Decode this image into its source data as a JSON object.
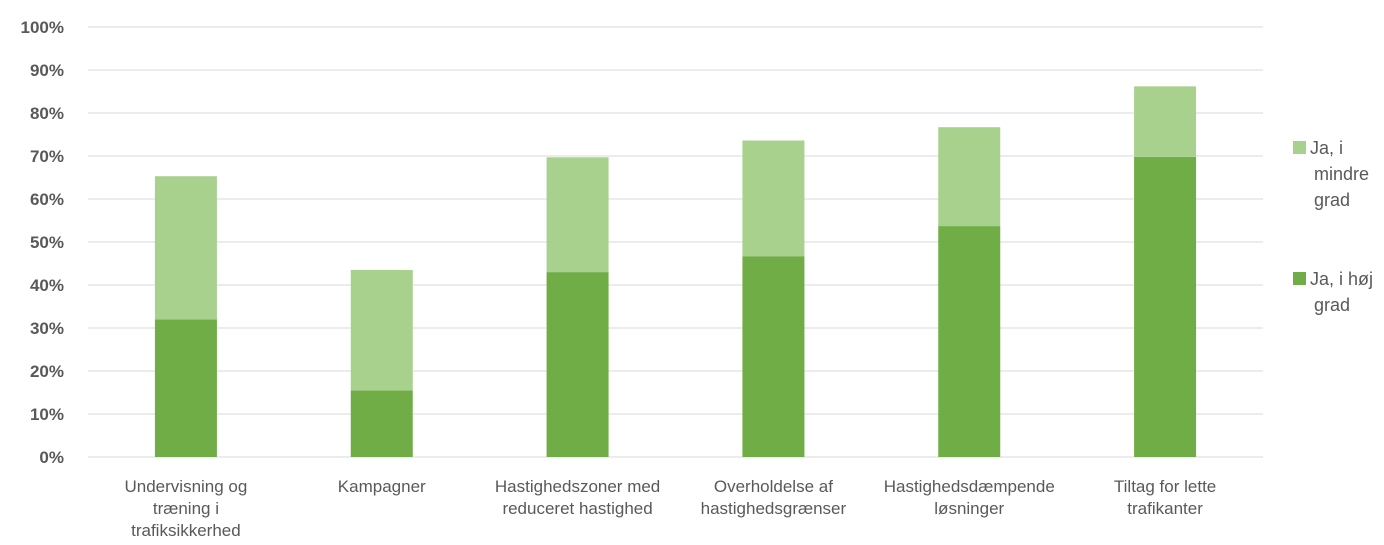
{
  "chart_data": {
    "type": "bar",
    "stacked": true,
    "categories": [
      [
        "Undervisning og",
        "træning i",
        "trafiksikkerhed"
      ],
      [
        "Kampagner"
      ],
      [
        "Hastighedszoner med",
        "reduceret hastighed"
      ],
      [
        "Overholdelse af",
        "hastighedsgrænser"
      ],
      [
        "Hastighedsdæmpende",
        "løsninger"
      ],
      [
        "Tiltag for lette",
        "trafikanter"
      ]
    ],
    "series": [
      {
        "name": "Ja, i høj grad",
        "name_lines": [
          "Ja, i høj",
          "grad"
        ],
        "color": "#70ad47",
        "values": [
          32,
          15.5,
          43,
          46.7,
          53.7,
          69.8
        ]
      },
      {
        "name": "Ja, i mindre grad",
        "name_lines": [
          "Ja, i",
          "mindre",
          "grad"
        ],
        "color": "#a9d18e",
        "values": [
          33.3,
          28,
          26.7,
          26.9,
          23,
          16.4
        ]
      }
    ],
    "yticks": [
      "0%",
      "10%",
      "20%",
      "30%",
      "40%",
      "50%",
      "60%",
      "70%",
      "80%",
      "90%",
      "100%"
    ],
    "ylim": [
      0,
      100
    ],
    "grid": true,
    "legend_position": "right"
  }
}
